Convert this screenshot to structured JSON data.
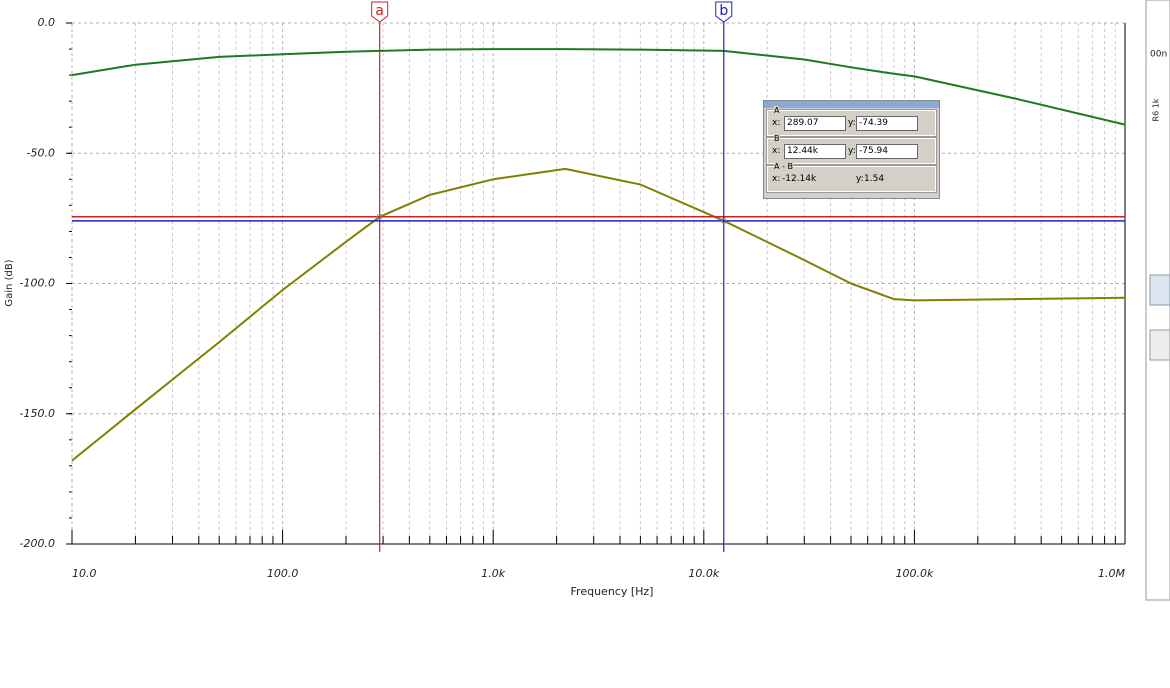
{
  "chart_data": {
    "type": "line",
    "x_label": "Frequency [Hz]",
    "y_label": "Gain (dB)",
    "x_scale": "log",
    "xlim": [
      10,
      1000000
    ],
    "ylim": [
      -200,
      0
    ],
    "xticks": [
      {
        "value": 10,
        "label": "10.0"
      },
      {
        "value": 100,
        "label": "100.0"
      },
      {
        "value": 1000,
        "label": "1.0k"
      },
      {
        "value": 10000,
        "label": "10.0k"
      },
      {
        "value": 100000,
        "label": "100.0k"
      },
      {
        "value": 1000000,
        "label": "1.0M"
      }
    ],
    "yticks": [
      {
        "value": 0,
        "label": "0.0"
      },
      {
        "value": -50,
        "label": "-50.0"
      },
      {
        "value": -100,
        "label": "-100.0"
      },
      {
        "value": -150,
        "label": "-150.0"
      },
      {
        "value": -200,
        "label": "-200.0"
      }
    ],
    "grid": true,
    "x": [
      10,
      20,
      50,
      100,
      200,
      289.07,
      500,
      1000,
      2200,
      5000,
      12440,
      30000,
      50000,
      80000,
      100000,
      300000,
      1000000
    ],
    "series": [
      {
        "color": "#1e7a1e",
        "values": [
          -20,
          -16,
          -13,
          -12,
          -11,
          -10.7,
          -10.2,
          -10,
          -10,
          -10.2,
          -10.7,
          -14,
          -17,
          -19.5,
          -20.5,
          -29,
          -39
        ]
      },
      {
        "color": "#808000",
        "values": [
          -168,
          -148.3,
          -122.5,
          -102.5,
          -84,
          -74.39,
          -66,
          -60,
          -56,
          -62,
          -75.94,
          -91,
          -100,
          -106,
          -106.5,
          -106,
          -105.5
        ]
      }
    ],
    "cursors": [
      {
        "name": "a",
        "color": "#d02020",
        "x": 289.07,
        "y": -74.39
      },
      {
        "name": "b",
        "color": "#2020c0",
        "x": 12440,
        "y": -75.94
      }
    ],
    "readout": [
      {
        "label": "A",
        "x_label": "x:",
        "x": "289.07",
        "y_label": "y:",
        "y": "-74.39"
      },
      {
        "label": "B",
        "x_label": "x:",
        "x": "12.44k",
        "y_label": "y:",
        "y": "-75.94"
      },
      {
        "label": "A - B",
        "x_label": "x:",
        "x": "-12.14k",
        "y_label": "y:",
        "y": "1.54"
      }
    ]
  },
  "side_labels": [
    "00n",
    "R6 1k"
  ]
}
